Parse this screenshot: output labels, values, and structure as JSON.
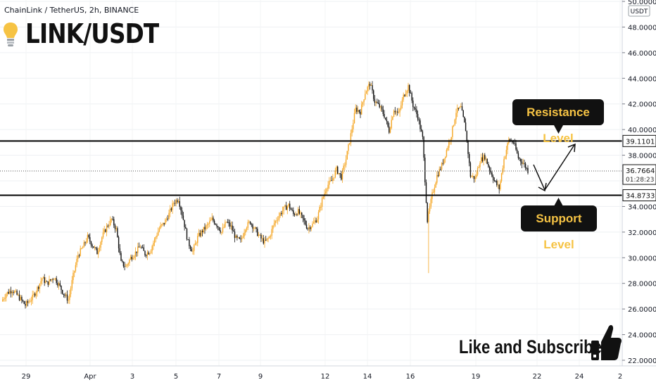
{
  "header": {
    "source": "ChainLink / TetherUS, 2h, BINANCE",
    "title": "LINK/USDT"
  },
  "annotations": {
    "resistance_label": "Resistance Level",
    "support_label": "Support Level",
    "cta": "Like and Subscribe"
  },
  "chart_data": {
    "type": "candlestick",
    "currency_label": "USDT",
    "y_range": [
      22,
      50
    ],
    "y_ticks": [
      "50.0000",
      "48.0000",
      "46.0000",
      "44.0000",
      "42.0000",
      "40.0000",
      "38.0000",
      "36.0000",
      "34.0000",
      "32.0000",
      "30.0000",
      "28.0000",
      "26.0000",
      "24.0000",
      "22.0000"
    ],
    "x_ticks": [
      "29",
      "Apr",
      "3",
      "5",
      "7",
      "9",
      "12",
      "14",
      "16",
      "19",
      "22",
      "24",
      "2"
    ],
    "resistance": {
      "value": 39.1101,
      "label": "39.1101"
    },
    "support": {
      "value": 34.8733,
      "label": "34.8733"
    },
    "last_price": {
      "value": 36.7664,
      "label": "36.7664",
      "countdown": "01:28:23"
    },
    "price_path": [
      [
        0,
        26.6
      ],
      [
        4,
        27.2
      ],
      [
        9,
        27.5
      ],
      [
        14,
        27.0
      ],
      [
        20,
        26.3
      ],
      [
        26,
        26.9
      ],
      [
        30,
        27.6
      ],
      [
        34,
        28.4
      ],
      [
        38,
        28.0
      ],
      [
        44,
        28.5
      ],
      [
        48,
        27.9
      ],
      [
        52,
        27.2
      ],
      [
        56,
        26.7
      ],
      [
        60,
        28.6
      ],
      [
        64,
        30.2
      ],
      [
        68,
        30.8
      ],
      [
        72,
        31.6
      ],
      [
        76,
        31.0
      ],
      [
        80,
        30.4
      ],
      [
        84,
        31.6
      ],
      [
        88,
        32.4
      ],
      [
        92,
        33.0
      ],
      [
        96,
        32.2
      ],
      [
        100,
        29.6
      ],
      [
        104,
        29.3
      ],
      [
        108,
        30.0
      ],
      [
        112,
        30.4
      ],
      [
        116,
        30.9
      ],
      [
        120,
        30.3
      ],
      [
        124,
        30.5
      ],
      [
        128,
        31.4
      ],
      [
        132,
        32.3
      ],
      [
        136,
        32.7
      ],
      [
        140,
        33.4
      ],
      [
        144,
        34.3
      ],
      [
        148,
        34.6
      ],
      [
        152,
        33.0
      ],
      [
        156,
        31.2
      ],
      [
        160,
        30.5
      ],
      [
        164,
        31.6
      ],
      [
        168,
        32.1
      ],
      [
        172,
        32.5
      ],
      [
        176,
        33.0
      ],
      [
        180,
        32.6
      ],
      [
        184,
        32.0
      ],
      [
        188,
        32.8
      ],
      [
        192,
        32.4
      ],
      [
        196,
        31.5
      ],
      [
        200,
        31.3
      ],
      [
        204,
        32.4
      ],
      [
        208,
        32.8
      ],
      [
        212,
        32.2
      ],
      [
        216,
        31.6
      ],
      [
        220,
        31.2
      ],
      [
        224,
        31.6
      ],
      [
        228,
        32.7
      ],
      [
        232,
        33.3
      ],
      [
        236,
        33.8
      ],
      [
        240,
        34.1
      ],
      [
        244,
        33.4
      ],
      [
        248,
        33.6
      ],
      [
        252,
        33.0
      ],
      [
        256,
        32.3
      ],
      [
        260,
        32.6
      ],
      [
        264,
        33.1
      ],
      [
        268,
        34.5
      ],
      [
        272,
        35.6
      ],
      [
        276,
        36.0
      ],
      [
        280,
        36.9
      ],
      [
        284,
        36.3
      ],
      [
        288,
        37.7
      ],
      [
        292,
        39.6
      ],
      [
        296,
        41.6
      ],
      [
        300,
        41.4
      ],
      [
        304,
        42.9
      ],
      [
        308,
        43.6
      ],
      [
        312,
        42.2
      ],
      [
        316,
        41.8
      ],
      [
        320,
        41.1
      ],
      [
        324,
        39.9
      ],
      [
        328,
        41.6
      ],
      [
        332,
        41.2
      ],
      [
        336,
        42.6
      ],
      [
        340,
        43.4
      ],
      [
        344,
        41.9
      ],
      [
        348,
        41.0
      ],
      [
        352,
        39.3
      ],
      [
        356,
        32.9
      ],
      [
        360,
        34.9
      ],
      [
        364,
        36.4
      ],
      [
        368,
        37.2
      ],
      [
        372,
        38.4
      ],
      [
        376,
        39.6
      ],
      [
        380,
        41.4
      ],
      [
        384,
        41.7
      ],
      [
        388,
        40.0
      ],
      [
        392,
        36.4
      ],
      [
        396,
        36.2
      ],
      [
        400,
        37.6
      ],
      [
        404,
        37.9
      ],
      [
        408,
        36.9
      ],
      [
        412,
        36.0
      ],
      [
        416,
        35.4
      ],
      [
        420,
        37.7
      ],
      [
        424,
        39.2
      ],
      [
        428,
        39.0
      ],
      [
        432,
        37.8
      ],
      [
        436,
        37.4
      ],
      [
        440,
        36.8
      ]
    ]
  }
}
